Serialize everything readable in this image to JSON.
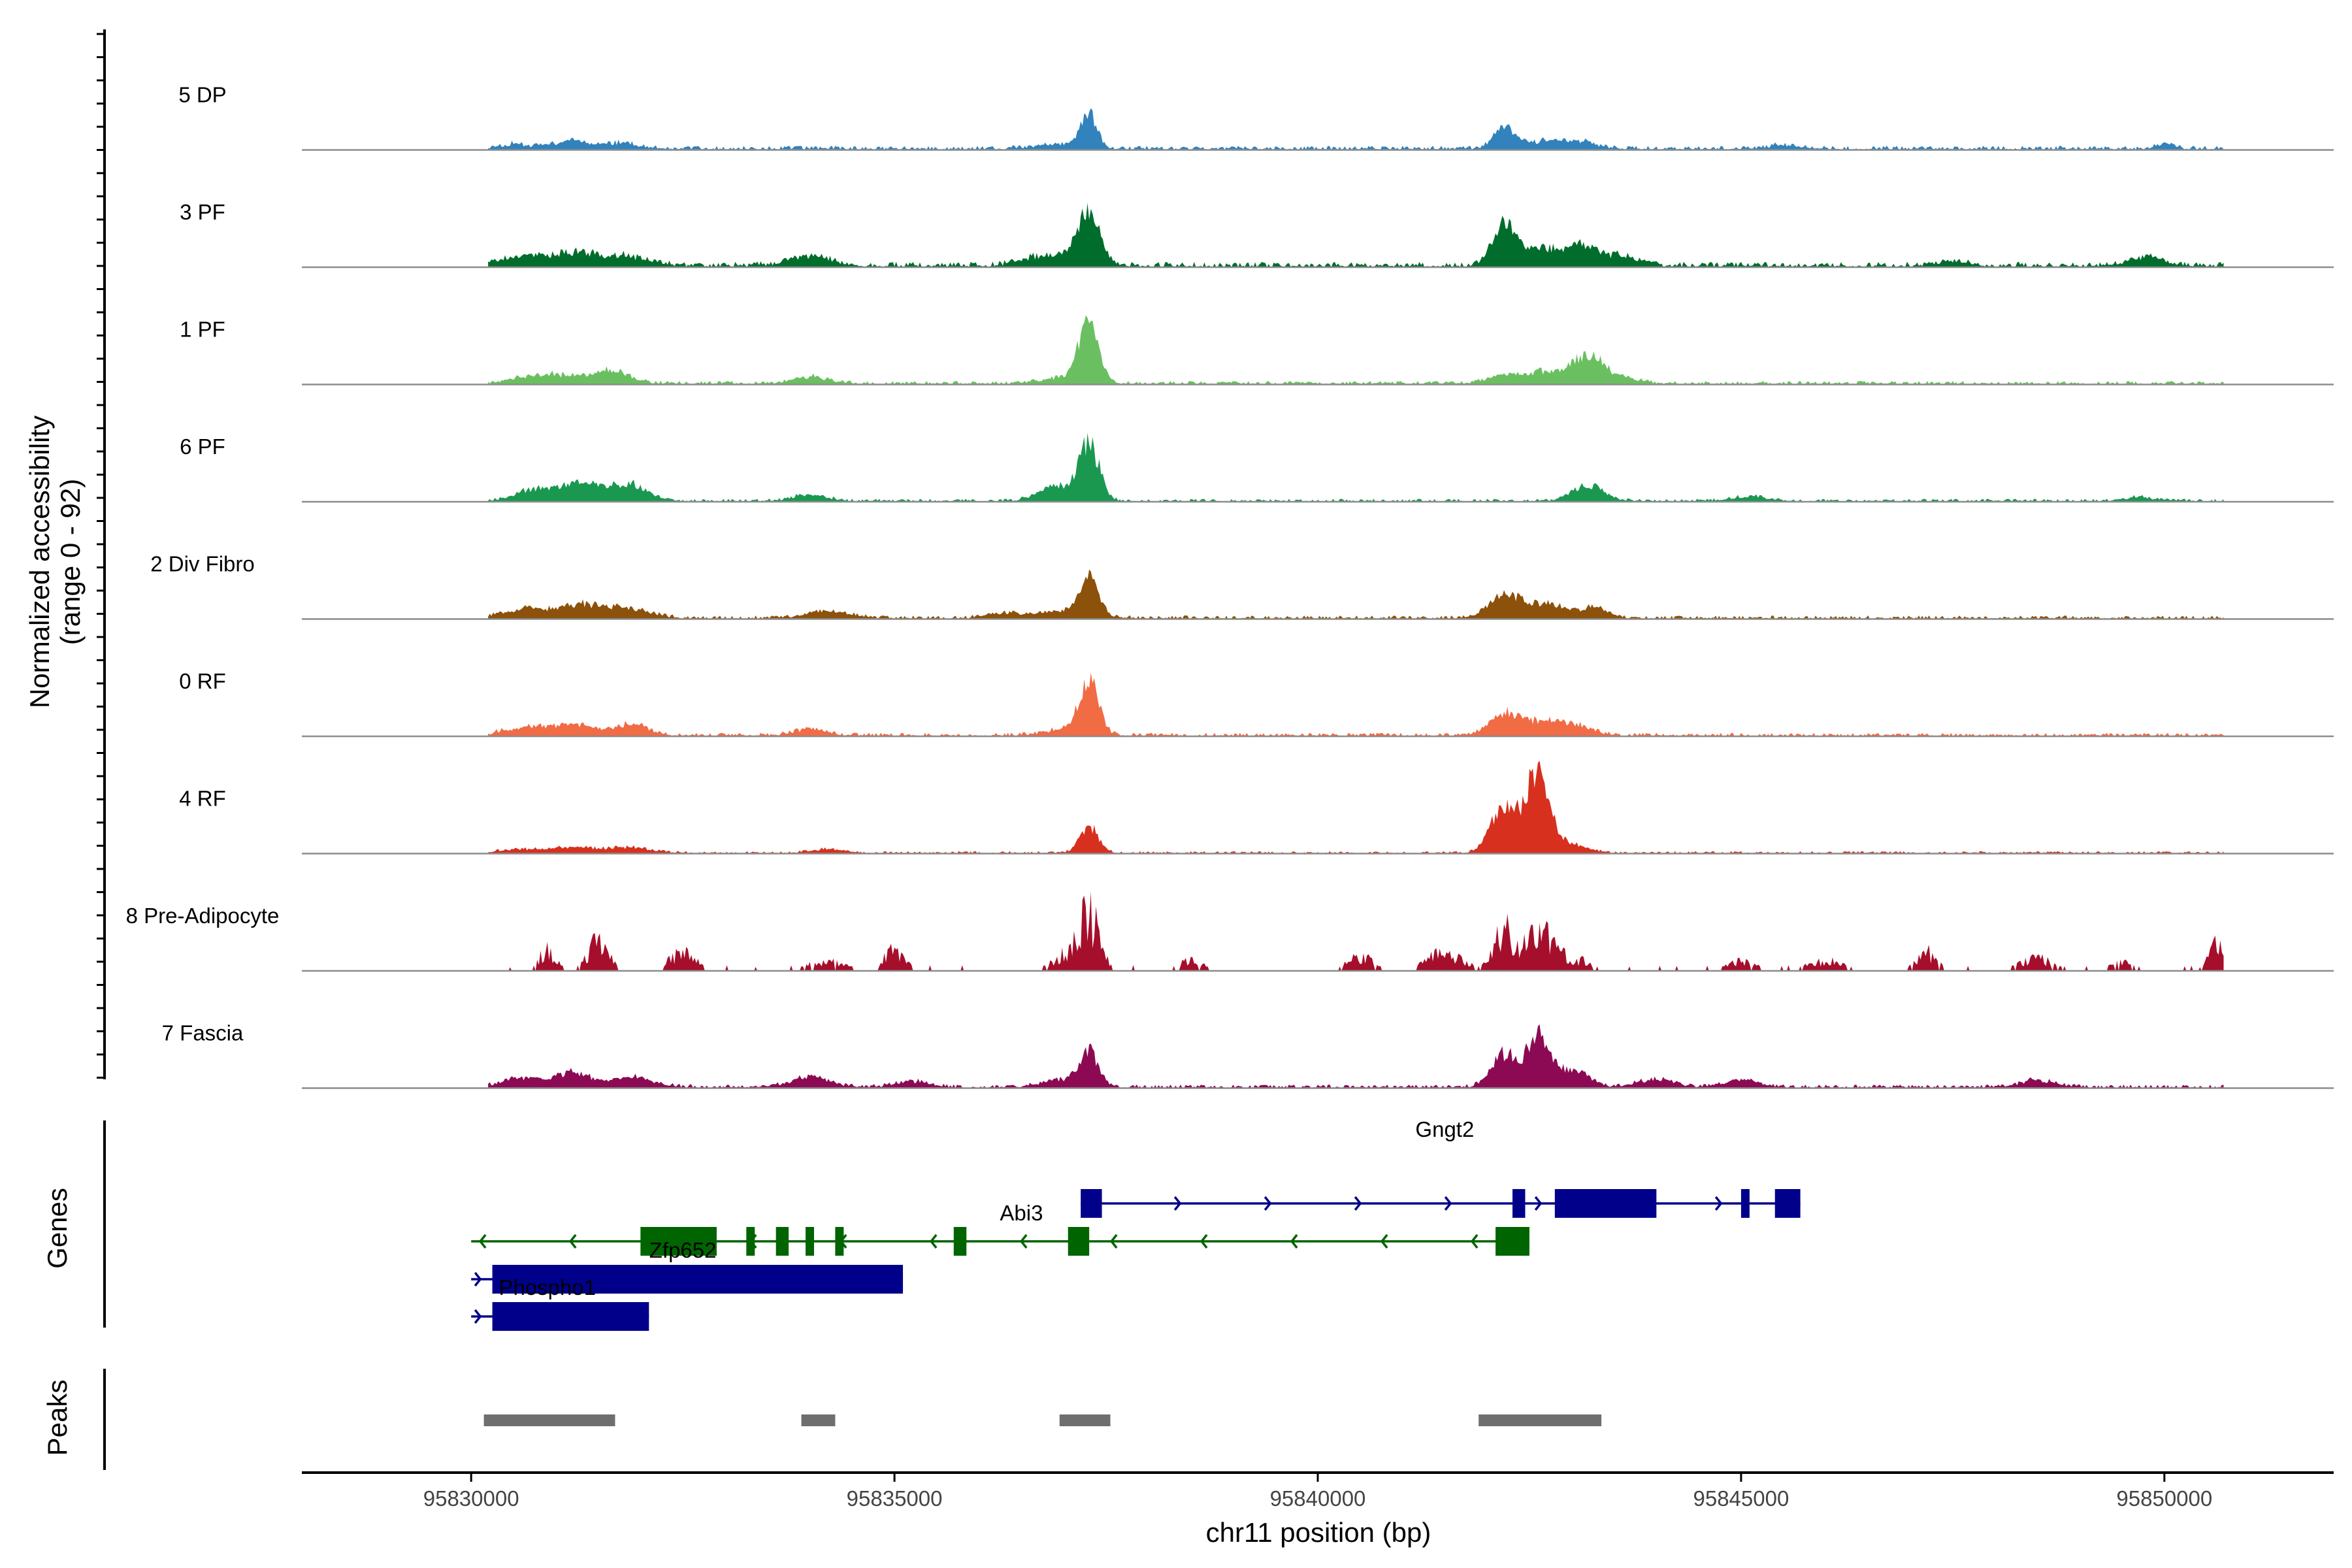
{
  "chart_data": {
    "type": "area",
    "title": "",
    "ylabel_line1": "Normalized accessibility",
    "ylabel_line2": "(range 0 - 92)",
    "xlabel": "chr11 position (bp)",
    "xlim": [
      95828000,
      95852000
    ],
    "ylim": [
      0,
      92
    ],
    "xticks": [
      95830000,
      95835000,
      95840000,
      95845000,
      95850000
    ],
    "xtick_labels": [
      "95830000",
      "95835000",
      "95840000",
      "95845000",
      "95850000"
    ],
    "track_range": [
      95830200,
      95850700
    ],
    "tracks": [
      {
        "name": "5 DP",
        "color": "#3182BD",
        "seed": 11,
        "spike": false,
        "base": 3.5,
        "peaks": [
          [
            95830500,
            4,
            150
          ],
          [
            95831200,
            7,
            250
          ],
          [
            95831800,
            4,
            200
          ],
          [
            95837300,
            28,
            90
          ],
          [
            95837000,
            4,
            300
          ],
          [
            95842200,
            17,
            120
          ],
          [
            95842700,
            6,
            300
          ],
          [
            95843100,
            4,
            200
          ],
          [
            95845500,
            3,
            200
          ],
          [
            95850000,
            5,
            100
          ]
        ]
      },
      {
        "name": "3 PF",
        "color": "#006D2C",
        "seed": 23,
        "spike": false,
        "base": 4.5,
        "peaks": [
          [
            95830600,
            8,
            300
          ],
          [
            95831300,
            10,
            300
          ],
          [
            95831900,
            6,
            250
          ],
          [
            95834000,
            8,
            250
          ],
          [
            95836600,
            5,
            200
          ],
          [
            95837300,
            45,
            120
          ],
          [
            95837000,
            8,
            250
          ],
          [
            95842200,
            32,
            140
          ],
          [
            95842600,
            14,
            200
          ],
          [
            95843100,
            18,
            200
          ],
          [
            95843600,
            7,
            200
          ],
          [
            95847500,
            4,
            200
          ],
          [
            95849800,
            8,
            200
          ]
        ]
      },
      {
        "name": "1 PF",
        "color": "#6AC060",
        "seed": 37,
        "spike": false,
        "base": 3,
        "peaks": [
          [
            95830700,
            5,
            250
          ],
          [
            95831200,
            6,
            300
          ],
          [
            95831700,
            9,
            200
          ],
          [
            95834000,
            6,
            200
          ],
          [
            95837300,
            58,
            110
          ],
          [
            95837000,
            5,
            250
          ],
          [
            95842200,
            7,
            200
          ],
          [
            95842700,
            10,
            200
          ],
          [
            95843200,
            24,
            180
          ],
          [
            95843600,
            4,
            200
          ]
        ]
      },
      {
        "name": "6 PF",
        "color": "#1A9850",
        "seed": 41,
        "spike": false,
        "base": 2.5,
        "peaks": [
          [
            95830700,
            8,
            200
          ],
          [
            95831300,
            15,
            300
          ],
          [
            95831900,
            12,
            200
          ],
          [
            95834000,
            5,
            200
          ],
          [
            95837300,
            48,
            120
          ],
          [
            95836900,
            12,
            200
          ],
          [
            95843200,
            14,
            180
          ],
          [
            95845100,
            4,
            200
          ],
          [
            95849700,
            3,
            200
          ]
        ]
      },
      {
        "name": "2 Div Fibro",
        "color": "#8C510A",
        "seed": 53,
        "spike": false,
        "base": 3,
        "peaks": [
          [
            95830600,
            7,
            250
          ],
          [
            95831300,
            11,
            300
          ],
          [
            95831900,
            7,
            250
          ],
          [
            95834200,
            6,
            250
          ],
          [
            95836300,
            4,
            200
          ],
          [
            95837300,
            30,
            110
          ],
          [
            95837000,
            6,
            300
          ],
          [
            95842200,
            18,
            180
          ],
          [
            95842700,
            12,
            250
          ],
          [
            95843300,
            8,
            150
          ]
        ]
      },
      {
        "name": "0 RF",
        "color": "#F16B45",
        "seed": 67,
        "spike": false,
        "base": 3,
        "peaks": [
          [
            95830600,
            6,
            250
          ],
          [
            95831200,
            9,
            250
          ],
          [
            95831900,
            9,
            200
          ],
          [
            95834000,
            5,
            200
          ],
          [
            95837300,
            46,
            110
          ],
          [
            95837050,
            6,
            250
          ],
          [
            95842200,
            18,
            170
          ],
          [
            95842700,
            12,
            250
          ],
          [
            95843100,
            5,
            200
          ]
        ]
      },
      {
        "name": "4 RF",
        "color": "#D7301F",
        "seed": 79,
        "spike": false,
        "base": 2,
        "peaks": [
          [
            95830500,
            3,
            200
          ],
          [
            95831200,
            5,
            300
          ],
          [
            95831900,
            4,
            250
          ],
          [
            95834200,
            3,
            200
          ],
          [
            95837300,
            22,
            110
          ],
          [
            95842200,
            42,
            150
          ],
          [
            95842600,
            70,
            130
          ],
          [
            95842900,
            8,
            250
          ]
        ]
      },
      {
        "name": "8 Pre-Adipocyte",
        "color": "#A50F2B",
        "seed": 97,
        "spike": true,
        "base": 0,
        "peaks": [
          [
            95830900,
            20,
            100
          ],
          [
            95831500,
            28,
            120
          ],
          [
            95832500,
            18,
            150
          ],
          [
            95834200,
            10,
            200
          ],
          [
            95835000,
            20,
            120
          ],
          [
            95837300,
            55,
            120
          ],
          [
            95837000,
            15,
            150
          ],
          [
            95838500,
            10,
            150
          ],
          [
            95840500,
            14,
            150
          ],
          [
            95841500,
            18,
            200
          ],
          [
            95842200,
            38,
            130
          ],
          [
            95842600,
            40,
            150
          ],
          [
            95843000,
            12,
            200
          ],
          [
            95845000,
            10,
            150
          ],
          [
            95846000,
            10,
            200
          ],
          [
            95847200,
            18,
            120
          ],
          [
            95848500,
            12,
            200
          ],
          [
            95849500,
            8,
            150
          ],
          [
            95850600,
            28,
            80
          ]
        ]
      },
      {
        "name": "7 Fascia",
        "color": "#8C0A54",
        "seed": 113,
        "spike": false,
        "base": 3,
        "peaks": [
          [
            95830600,
            8,
            250
          ],
          [
            95831200,
            12,
            200
          ],
          [
            95831900,
            8,
            250
          ],
          [
            95834000,
            8,
            250
          ],
          [
            95835200,
            5,
            200
          ],
          [
            95837300,
            28,
            110
          ],
          [
            95837000,
            6,
            250
          ],
          [
            95842200,
            28,
            150
          ],
          [
            95842600,
            44,
            130
          ],
          [
            95843000,
            14,
            200
          ],
          [
            95844000,
            7,
            200
          ],
          [
            95845000,
            6,
            200
          ],
          [
            95848500,
            6,
            200
          ]
        ]
      }
    ],
    "genes_label": "Genes",
    "peaks_label": "Peaks",
    "genes": [
      {
        "name": "Gngt2",
        "strand": "+",
        "row": 0,
        "color": "#00008B",
        "start": 95837200,
        "end": 95845700,
        "label_pos": 95841500,
        "exons": [
          [
            95837200,
            95837450
          ],
          [
            95842300,
            95842450
          ],
          [
            95842800,
            95844000
          ],
          [
            95845000,
            95845100
          ],
          [
            95845400,
            95845700
          ]
        ]
      },
      {
        "name": "Abi3",
        "strand": "-",
        "row": 1,
        "color": "#006400",
        "start": 95830000,
        "end": 95842500,
        "label_pos": 95836500,
        "exons": [
          [
            95832000,
            95832900
          ],
          [
            95833250,
            95833350
          ],
          [
            95833600,
            95833750
          ],
          [
            95833950,
            95834050
          ],
          [
            95834300,
            95834400
          ],
          [
            95835700,
            95835850
          ],
          [
            95837050,
            95837300
          ],
          [
            95842100,
            95842500
          ]
        ]
      },
      {
        "name": "Zfp652",
        "strand": "+",
        "row": 2,
        "color": "#00008B",
        "start": 95830000,
        "end": 95835100,
        "label_pos": 95832500,
        "exons": [
          [
            95830250,
            95835100
          ]
        ]
      },
      {
        "name": "Phospho1",
        "strand": "+",
        "row": 3,
        "color": "#00008B",
        "start": 95830000,
        "end": 95832100,
        "label_pos": 95830900,
        "exons": [
          [
            95830250,
            95832100
          ]
        ]
      }
    ],
    "peak_regions": [
      [
        95830150,
        95831700
      ],
      [
        95833900,
        95834300
      ],
      [
        95836950,
        95837550
      ],
      [
        95841900,
        95843350
      ]
    ]
  }
}
